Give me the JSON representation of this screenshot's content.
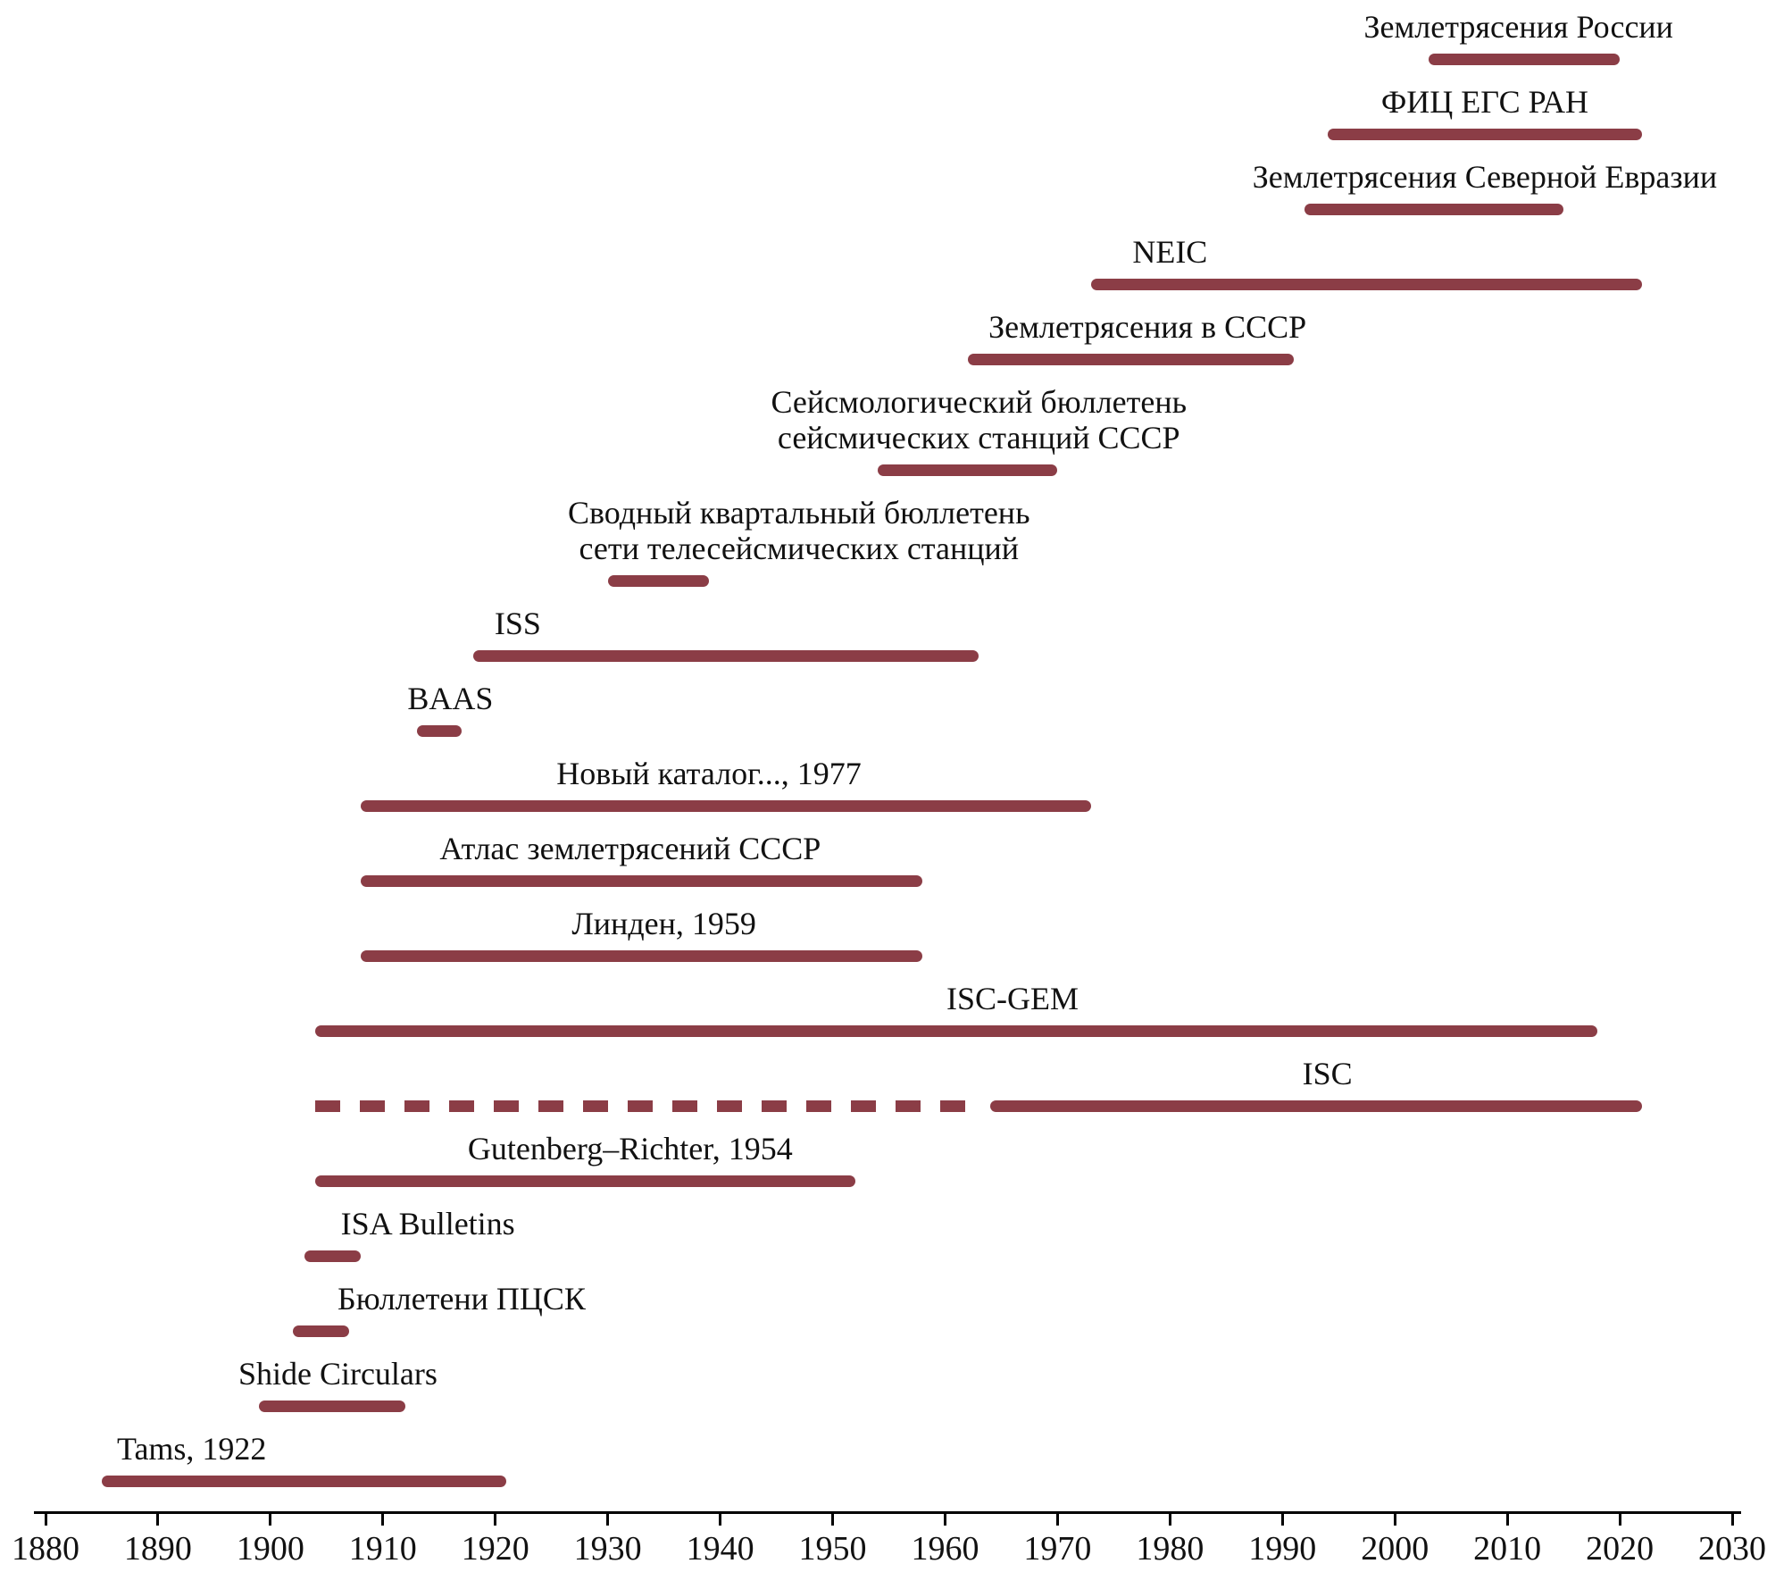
{
  "chart_data": {
    "type": "timeline",
    "title": "",
    "xlabel": "",
    "ylabel": "",
    "grid": false,
    "legend": false,
    "bar_color": "#8b3d46",
    "text_color": "#111111",
    "x_axis": {
      "min": 1880,
      "max": 2030,
      "tick_step": 10,
      "ticks": [
        1880,
        1890,
        1900,
        1910,
        1920,
        1930,
        1940,
        1950,
        1960,
        1970,
        1980,
        1990,
        2000,
        2010,
        2020,
        2030
      ]
    },
    "entries": [
      {
        "label_lines": [
          "Землетрясения России"
        ],
        "label_center": 2011,
        "segments": [
          {
            "start": 2003,
            "end": 2020,
            "dashed": false
          }
        ]
      },
      {
        "label_lines": [
          "ФИЦ ЕГС РАН"
        ],
        "label_center": 2008,
        "segments": [
          {
            "start": 1994,
            "end": 2022,
            "dashed": false
          }
        ]
      },
      {
        "label_lines": [
          "Землетрясения Северной Евразии"
        ],
        "label_center": 2008,
        "segments": [
          {
            "start": 1992,
            "end": 2015,
            "dashed": false
          }
        ]
      },
      {
        "label_lines": [
          "NEIC"
        ],
        "label_center": 1980,
        "segments": [
          {
            "start": 1973,
            "end": 2022,
            "dashed": false
          }
        ]
      },
      {
        "label_lines": [
          "Землетрясения в СССР"
        ],
        "label_center": 1978,
        "segments": [
          {
            "start": 1962,
            "end": 1991,
            "dashed": false
          }
        ]
      },
      {
        "label_lines": [
          "Сейсмологический бюллетень",
          "сейсмических станций СССР"
        ],
        "label_center": 1963,
        "segments": [
          {
            "start": 1954,
            "end": 1970,
            "dashed": false
          }
        ]
      },
      {
        "label_lines": [
          "Сводный квартальный бюллетень",
          "сети телесейсмических станций"
        ],
        "label_center": 1947,
        "segments": [
          {
            "start": 1930,
            "end": 1939,
            "dashed": false
          }
        ]
      },
      {
        "label_lines": [
          "ISS"
        ],
        "label_center": 1922,
        "segments": [
          {
            "start": 1918,
            "end": 1963,
            "dashed": false
          }
        ]
      },
      {
        "label_lines": [
          "BAAS"
        ],
        "label_center": 1916,
        "segments": [
          {
            "start": 1913,
            "end": 1917,
            "dashed": false
          }
        ]
      },
      {
        "label_lines": [
          "Новый каталог..., 1977"
        ],
        "label_center": 1939,
        "segments": [
          {
            "start": 1908,
            "end": 1973,
            "dashed": false
          }
        ]
      },
      {
        "label_lines": [
          "Атлас землетрясений СССР"
        ],
        "label_center": 1932,
        "segments": [
          {
            "start": 1908,
            "end": 1958,
            "dashed": false
          }
        ]
      },
      {
        "label_lines": [
          "Линден, 1959"
        ],
        "label_center": 1935,
        "segments": [
          {
            "start": 1908,
            "end": 1958,
            "dashed": false
          }
        ]
      },
      {
        "label_lines": [
          "ISC-GEM"
        ],
        "label_center": 1966,
        "segments": [
          {
            "start": 1904,
            "end": 2018,
            "dashed": false
          }
        ]
      },
      {
        "label_lines": [
          "ISC"
        ],
        "label_center": 1994,
        "segments": [
          {
            "start": 1904,
            "end": 1962,
            "dashed": true
          },
          {
            "start": 1964,
            "end": 2022,
            "dashed": false
          }
        ]
      },
      {
        "label_lines": [
          "Gutenberg–Richter, 1954"
        ],
        "label_center": 1932,
        "segments": [
          {
            "start": 1904,
            "end": 1952,
            "dashed": false
          }
        ]
      },
      {
        "label_lines": [
          "ISA Bulletins"
        ],
        "label_center": 1914,
        "segments": [
          {
            "start": 1903,
            "end": 1908,
            "dashed": false
          }
        ]
      },
      {
        "label_lines": [
          "Бюллетени ПЦСК"
        ],
        "label_center": 1917,
        "segments": [
          {
            "start": 1902,
            "end": 1907,
            "dashed": false
          }
        ]
      },
      {
        "label_lines": [
          "Shide Circulars"
        ],
        "label_center": 1906,
        "segments": [
          {
            "start": 1899,
            "end": 1912,
            "dashed": false
          }
        ]
      },
      {
        "label_lines": [
          "Tams, 1922"
        ],
        "label_center": 1893,
        "segments": [
          {
            "start": 1885,
            "end": 1921,
            "dashed": false
          }
        ]
      }
    ]
  }
}
